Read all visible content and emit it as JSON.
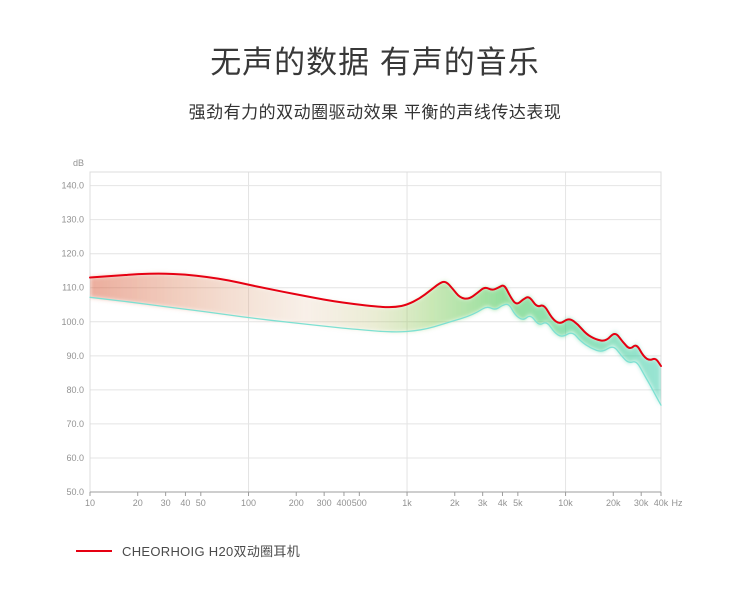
{
  "page": {
    "title": "无声的数据 有声的音乐",
    "subtitle": "强劲有力的双动圈驱动效果 平衡的声线传达表现",
    "background": "#ffffff"
  },
  "legend": {
    "label": "CHEORHOIG H20双动圈耳机",
    "swatch_color": "#e60012"
  },
  "chart_data": {
    "type": "line",
    "x_scale": "log",
    "x_unit_label": "Hz",
    "y_unit_label": "dB",
    "xlim": [
      10,
      40000
    ],
    "ylim": [
      50,
      144
    ],
    "grid": true,
    "x_ticks": [
      10,
      20,
      30,
      40,
      50,
      100,
      200,
      300,
      400,
      500,
      1000,
      2000,
      3000,
      4000,
      5000,
      10000,
      20000,
      30000,
      40000
    ],
    "x_tick_labels": [
      "10",
      "20",
      "30",
      "40",
      "50",
      "100",
      "200",
      "300",
      "400",
      "500",
      "1k",
      "2k",
      "3k",
      "4k",
      "5k",
      "10k",
      "20k",
      "30k",
      "40k"
    ],
    "x_gridlines": [
      100,
      1000,
      10000
    ],
    "y_ticks": [
      140,
      130,
      120,
      110,
      100,
      90,
      80,
      70,
      60,
      50
    ],
    "y_tick_labels": [
      "140.0",
      "130.0",
      "120.0",
      "110.0",
      "100.0",
      "90.0",
      "80.0",
      "70.0",
      "60.0",
      "50.0"
    ],
    "series": [
      {
        "label": "CHEORHOIG H20双动圈耳机",
        "color": "#e60012",
        "stroke_width": 2,
        "points": [
          [
            10,
            113
          ],
          [
            14,
            113.5
          ],
          [
            20,
            114
          ],
          [
            28,
            114.2
          ],
          [
            40,
            113.9
          ],
          [
            55,
            113.2
          ],
          [
            75,
            112.2
          ],
          [
            100,
            110.9
          ],
          [
            130,
            109.8
          ],
          [
            170,
            108.7
          ],
          [
            220,
            107.7
          ],
          [
            300,
            106.5
          ],
          [
            400,
            105.6
          ],
          [
            550,
            104.8
          ],
          [
            700,
            104.3
          ],
          [
            850,
            104.3
          ],
          [
            1000,
            105
          ],
          [
            1200,
            106.8
          ],
          [
            1400,
            109.2
          ],
          [
            1600,
            111.3
          ],
          [
            1750,
            112
          ],
          [
            1950,
            109.6
          ],
          [
            2150,
            107.1
          ],
          [
            2450,
            106.6
          ],
          [
            2800,
            108.6
          ],
          [
            3100,
            110.3
          ],
          [
            3450,
            109.2
          ],
          [
            3800,
            110.1
          ],
          [
            4100,
            111
          ],
          [
            4500,
            107.2
          ],
          [
            4900,
            104.9
          ],
          [
            5400,
            106.6
          ],
          [
            5900,
            107.6
          ],
          [
            6600,
            104.2
          ],
          [
            7300,
            105.2
          ],
          [
            8200,
            101
          ],
          [
            9200,
            99.2
          ],
          [
            10500,
            101.2
          ],
          [
            12000,
            99.2
          ],
          [
            13500,
            96.4
          ],
          [
            15500,
            94.8
          ],
          [
            18000,
            94.2
          ],
          [
            20500,
            97.2
          ],
          [
            23000,
            94
          ],
          [
            25500,
            91.8
          ],
          [
            28000,
            93.6
          ],
          [
            31000,
            89.8
          ],
          [
            34000,
            88.6
          ],
          [
            37000,
            89.4
          ],
          [
            40000,
            87
          ]
        ]
      },
      {
        "label": "",
        "color": "#7de0d2",
        "stroke_width": 1.3,
        "points": [
          [
            10,
            107.2
          ],
          [
            14,
            106.4
          ],
          [
            20,
            105.5
          ],
          [
            30,
            104.4
          ],
          [
            45,
            103.4
          ],
          [
            65,
            102.4
          ],
          [
            90,
            101.5
          ],
          [
            120,
            100.8
          ],
          [
            160,
            100.1
          ],
          [
            220,
            99.4
          ],
          [
            300,
            98.7
          ],
          [
            420,
            98
          ],
          [
            560,
            97.5
          ],
          [
            720,
            97.1
          ],
          [
            900,
            97
          ],
          [
            1100,
            97.3
          ],
          [
            1350,
            98
          ],
          [
            1650,
            99.2
          ],
          [
            2000,
            100.4
          ],
          [
            2400,
            101.5
          ],
          [
            2800,
            102.9
          ],
          [
            3200,
            104.6
          ],
          [
            3600,
            103.4
          ],
          [
            4000,
            104.9
          ],
          [
            4400,
            105.3
          ],
          [
            4800,
            102
          ],
          [
            5400,
            100.3
          ],
          [
            6000,
            102.2
          ],
          [
            6800,
            98.8
          ],
          [
            7600,
            100.2
          ],
          [
            8500,
            96.8
          ],
          [
            9500,
            95.4
          ],
          [
            11000,
            97.2
          ],
          [
            12500,
            94.2
          ],
          [
            14500,
            92.2
          ],
          [
            17000,
            91
          ],
          [
            20000,
            93.2
          ],
          [
            22500,
            90
          ],
          [
            25000,
            87.8
          ],
          [
            28000,
            88.6
          ],
          [
            31000,
            84.8
          ],
          [
            34000,
            81.6
          ],
          [
            37000,
            78.4
          ],
          [
            40000,
            75.5
          ]
        ]
      }
    ],
    "band": {
      "between_series": [
        0,
        1
      ],
      "gradient": [
        {
          "offset": 0,
          "color": "#d85a3a",
          "opacity": 0.5
        },
        {
          "offset": 0.18,
          "color": "#dd8a64",
          "opacity": 0.38
        },
        {
          "offset": 0.38,
          "color": "#dcb48e",
          "opacity": 0.2
        },
        {
          "offset": 0.5,
          "color": "#b9c370",
          "opacity": 0.3
        },
        {
          "offset": 0.6,
          "color": "#7cc84f",
          "opacity": 0.42
        },
        {
          "offset": 0.72,
          "color": "#3dc44f",
          "opacity": 0.55
        },
        {
          "offset": 0.86,
          "color": "#2fc87e",
          "opacity": 0.55
        },
        {
          "offset": 1,
          "color": "#35c9a8",
          "opacity": 0.5
        }
      ]
    }
  }
}
